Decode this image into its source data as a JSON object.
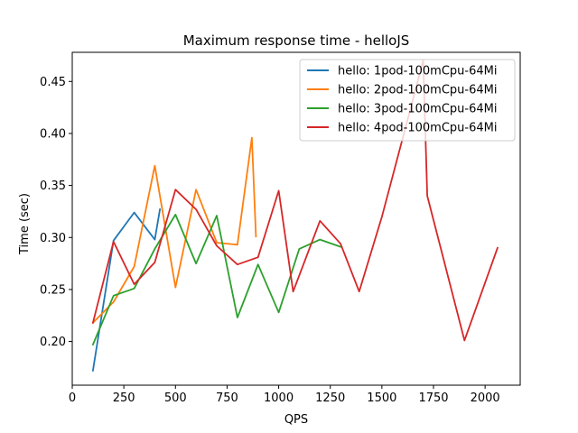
{
  "chart_data": {
    "type": "line",
    "title": "Maximum response time - helloJS",
    "xlabel": "QPS",
    "ylabel": "Time (sec)",
    "xlim": [
      0,
      2170
    ],
    "ylim": [
      0.158,
      0.478
    ],
    "xticks": [
      0,
      250,
      500,
      750,
      1000,
      1250,
      1500,
      1750,
      2000
    ],
    "xtick_labels": [
      "0",
      "250",
      "500",
      "750",
      "1000",
      "1250",
      "1500",
      "1750",
      "2000"
    ],
    "yticks": [
      0.2,
      0.25,
      0.3,
      0.35,
      0.4,
      0.45
    ],
    "ytick_labels": [
      "0.20",
      "0.25",
      "0.30",
      "0.35",
      "0.40",
      "0.45"
    ],
    "grid": false,
    "legend_position": "top-right",
    "series": [
      {
        "name": "hello: 1pod-100mCpu-64Mi",
        "color": "#1f77b4",
        "x": [
          100,
          200,
          300,
          400,
          425
        ],
        "y": [
          0.172,
          0.297,
          0.324,
          0.298,
          0.327
        ]
      },
      {
        "name": "hello: 2pod-100mCpu-64Mi",
        "color": "#ff7f0e",
        "x": [
          100,
          200,
          300,
          400,
          500,
          600,
          700,
          800,
          870,
          890
        ],
        "y": [
          0.218,
          0.238,
          0.272,
          0.369,
          0.252,
          0.346,
          0.295,
          0.293,
          0.396,
          0.301
        ]
      },
      {
        "name": "hello: 3pod-100mCpu-64Mi",
        "color": "#2ca02c",
        "x": [
          100,
          200,
          300,
          400,
          500,
          600,
          700,
          800,
          900,
          1000,
          1100,
          1200,
          1300
        ],
        "y": [
          0.197,
          0.244,
          0.251,
          0.289,
          0.322,
          0.275,
          0.321,
          0.223,
          0.274,
          0.228,
          0.289,
          0.298,
          0.291
        ]
      },
      {
        "name": "hello: 4pod-100mCpu-64Mi",
        "color": "#d62728",
        "x": [
          100,
          200,
          300,
          400,
          500,
          600,
          700,
          800,
          900,
          1000,
          1070,
          1200,
          1300,
          1390,
          1500,
          1700,
          1720,
          1900,
          2060
        ],
        "y": [
          0.218,
          0.296,
          0.255,
          0.276,
          0.346,
          0.327,
          0.292,
          0.274,
          0.281,
          0.345,
          0.248,
          0.316,
          0.294,
          0.248,
          0.32,
          0.47,
          0.34,
          0.201,
          0.29
        ]
      }
    ]
  }
}
